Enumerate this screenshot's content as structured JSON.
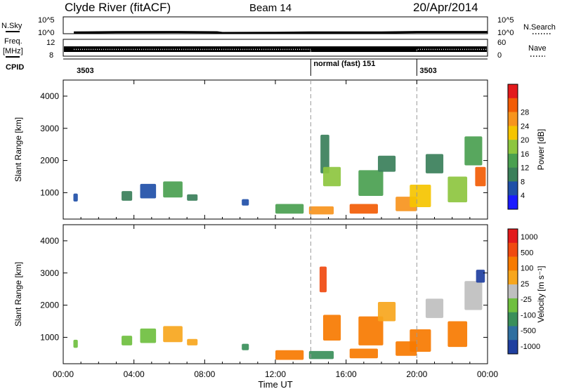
{
  "header": {
    "site": "Clyde River (fitACF)",
    "beam": "Beam 14",
    "date": "20/Apr/2014"
  },
  "time_axis": {
    "ticks": [
      "00:00",
      "04:00",
      "08:00",
      "12:00",
      "16:00",
      "20:00",
      "00:00"
    ],
    "label": "Time UT"
  },
  "chart_data": [
    {
      "type": "line",
      "panel": "nsky_nsearch",
      "left_label": "N.Sky",
      "right_label": "N.Search",
      "left_ticks": [
        "10^5",
        "10^0"
      ],
      "right_ticks": [
        "10^5",
        "10^0"
      ],
      "x_hours": [
        0.6,
        3.0,
        6.0,
        8.7,
        9.0,
        12.0,
        14.0,
        18.0,
        20.0,
        24.0
      ],
      "values_log": [
        0.35,
        0.45,
        0.5,
        0.42,
        0.2,
        0.28,
        0.35,
        0.35,
        0.5,
        0.5
      ]
    },
    {
      "type": "line",
      "panel": "freq_nave",
      "left_label": "Freq.",
      "left_unit": "[MHz]",
      "right_label": "Nave",
      "left_ticks": [
        "12",
        "8"
      ],
      "right_ticks": [
        "60",
        "0"
      ],
      "x_hours": [
        0.6,
        14.0,
        14.0,
        20.0,
        20.0,
        24.0
      ],
      "nave": [
        24,
        24,
        10,
        10,
        24,
        24
      ]
    },
    {
      "type": "table",
      "panel": "cpid",
      "label": "CPID",
      "segments": [
        {
          "start_h": 0.6,
          "end_h": 14.0,
          "text": "3503"
        },
        {
          "start_h": 14.0,
          "end_h": 20.0,
          "text": "normal (fast) 151"
        },
        {
          "start_h": 20.0,
          "end_h": 24.0,
          "text": "3503"
        }
      ]
    },
    {
      "type": "heatmap",
      "panel": "power",
      "ylabel": "Slant Range [km]",
      "yticks": [
        "1000",
        "2000",
        "3000",
        "4000"
      ],
      "ylim": [
        180,
        4500
      ],
      "colorbar_label": "Power [dB]",
      "colorbar_ticks": [
        "4",
        "8",
        "12",
        "16",
        "20",
        "24",
        "28"
      ],
      "colors": [
        "#1a1aff",
        "#1f4fa8",
        "#3a7f5a",
        "#4aa050",
        "#8dc63f",
        "#f5c400",
        "#f7941d",
        "#f25c05",
        "#e31a1c"
      ],
      "blobs": [
        {
          "t": 0.7,
          "r": 850,
          "w": 0.25,
          "h": 250,
          "c": 1
        },
        {
          "t": 3.6,
          "r": 900,
          "w": 0.6,
          "h": 300,
          "c": 2
        },
        {
          "t": 4.8,
          "r": 1050,
          "w": 0.9,
          "h": 450,
          "c": 1
        },
        {
          "t": 6.2,
          "r": 1100,
          "w": 1.1,
          "h": 500,
          "c": 3
        },
        {
          "t": 7.3,
          "r": 850,
          "w": 0.6,
          "h": 200,
          "c": 2
        },
        {
          "t": 10.3,
          "r": 700,
          "w": 0.4,
          "h": 200,
          "c": 1
        },
        {
          "t": 12.8,
          "r": 500,
          "w": 1.6,
          "h": 300,
          "c": 3
        },
        {
          "t": 14.6,
          "r": 450,
          "w": 1.4,
          "h": 250,
          "c": 6
        },
        {
          "t": 14.8,
          "r": 2200,
          "w": 0.5,
          "h": 1200,
          "c": 2
        },
        {
          "t": 15.2,
          "r": 1500,
          "w": 1.0,
          "h": 600,
          "c": 4
        },
        {
          "t": 17.0,
          "r": 500,
          "w": 1.6,
          "h": 300,
          "c": 7
        },
        {
          "t": 17.4,
          "r": 1300,
          "w": 1.4,
          "h": 800,
          "c": 3
        },
        {
          "t": 18.3,
          "r": 1900,
          "w": 1.0,
          "h": 500,
          "c": 2
        },
        {
          "t": 19.4,
          "r": 650,
          "w": 1.2,
          "h": 450,
          "c": 6
        },
        {
          "t": 20.2,
          "r": 900,
          "w": 1.2,
          "h": 700,
          "c": 5
        },
        {
          "t": 21.0,
          "r": 1900,
          "w": 1.0,
          "h": 600,
          "c": 2
        },
        {
          "t": 22.3,
          "r": 1100,
          "w": 1.1,
          "h": 800,
          "c": 4
        },
        {
          "t": 23.2,
          "r": 2300,
          "w": 1.0,
          "h": 900,
          "c": 3
        },
        {
          "t": 23.6,
          "r": 1500,
          "w": 0.6,
          "h": 600,
          "c": 7
        }
      ]
    },
    {
      "type": "heatmap",
      "panel": "velocity",
      "ylabel": "Slant Range [km]",
      "yticks": [
        "1000",
        "2000",
        "3000",
        "4000"
      ],
      "ylim": [
        180,
        4500
      ],
      "colorbar_label": "Velocity [m s⁻¹]",
      "colorbar_ticks": [
        "1000",
        "500",
        "100",
        "25",
        "-25",
        "-100",
        "-500",
        "-1000"
      ],
      "colors": [
        "#1f3f9f",
        "#2f6fa0",
        "#3a8f5a",
        "#6fbf3f",
        "#bfbfbf",
        "#f7a61d",
        "#f77a00",
        "#f04a10",
        "#e31a1c"
      ],
      "blobs": [
        {
          "t": 0.7,
          "r": 800,
          "w": 0.25,
          "h": 250,
          "c": 3
        },
        {
          "t": 3.6,
          "r": 900,
          "w": 0.6,
          "h": 300,
          "c": 3
        },
        {
          "t": 4.8,
          "r": 1050,
          "w": 0.9,
          "h": 450,
          "c": 3
        },
        {
          "t": 6.2,
          "r": 1100,
          "w": 1.1,
          "h": 500,
          "c": 5
        },
        {
          "t": 7.3,
          "r": 850,
          "w": 0.6,
          "h": 200,
          "c": 5
        },
        {
          "t": 10.3,
          "r": 700,
          "w": 0.4,
          "h": 200,
          "c": 2
        },
        {
          "t": 12.8,
          "r": 450,
          "w": 1.6,
          "h": 300,
          "c": 6
        },
        {
          "t": 14.6,
          "r": 450,
          "w": 1.4,
          "h": 250,
          "c": 2
        },
        {
          "t": 14.7,
          "r": 2800,
          "w": 0.4,
          "h": 800,
          "c": 7
        },
        {
          "t": 15.2,
          "r": 1300,
          "w": 1.0,
          "h": 800,
          "c": 6
        },
        {
          "t": 17.0,
          "r": 500,
          "w": 1.6,
          "h": 300,
          "c": 6
        },
        {
          "t": 17.4,
          "r": 1200,
          "w": 1.4,
          "h": 900,
          "c": 6
        },
        {
          "t": 18.3,
          "r": 1800,
          "w": 1.0,
          "h": 600,
          "c": 5
        },
        {
          "t": 19.4,
          "r": 650,
          "w": 1.2,
          "h": 450,
          "c": 6
        },
        {
          "t": 20.2,
          "r": 900,
          "w": 1.2,
          "h": 700,
          "c": 6
        },
        {
          "t": 21.0,
          "r": 1900,
          "w": 1.0,
          "h": 600,
          "c": 4
        },
        {
          "t": 22.3,
          "r": 1100,
          "w": 1.1,
          "h": 800,
          "c": 6
        },
        {
          "t": 23.2,
          "r": 2300,
          "w": 1.0,
          "h": 900,
          "c": 4
        },
        {
          "t": 23.6,
          "r": 2900,
          "w": 0.5,
          "h": 400,
          "c": 0
        }
      ]
    }
  ]
}
